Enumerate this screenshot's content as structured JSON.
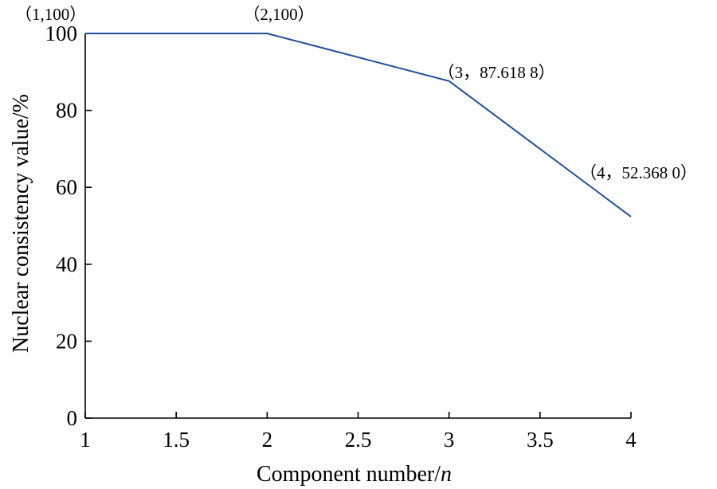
{
  "chart_data": {
    "type": "line",
    "title": "",
    "xlabel": "Component number/",
    "xlabel_italic": "n",
    "ylabel": "Nuclear consistency value/%",
    "xlim": [
      1,
      4
    ],
    "ylim": [
      0,
      100
    ],
    "xticks": [
      "1",
      "1.5",
      "2",
      "2.5",
      "3",
      "3.5",
      "4"
    ],
    "yticks": [
      "0",
      "20",
      "40",
      "60",
      "80",
      "100"
    ],
    "xtick_values": [
      1,
      1.5,
      2,
      2.5,
      3,
      3.5,
      4
    ],
    "ytick_values": [
      0,
      20,
      40,
      60,
      80,
      100
    ],
    "grid": false,
    "series": [
      {
        "color": "#1f4e99",
        "x": [
          1,
          2,
          3,
          4
        ],
        "y": [
          100,
          100,
          87.6188,
          52.368
        ]
      }
    ],
    "annotations": [
      "（1,100）",
      "（2,100）",
      "（3，87.618 8）",
      "（4，52.368 0）"
    ]
  }
}
